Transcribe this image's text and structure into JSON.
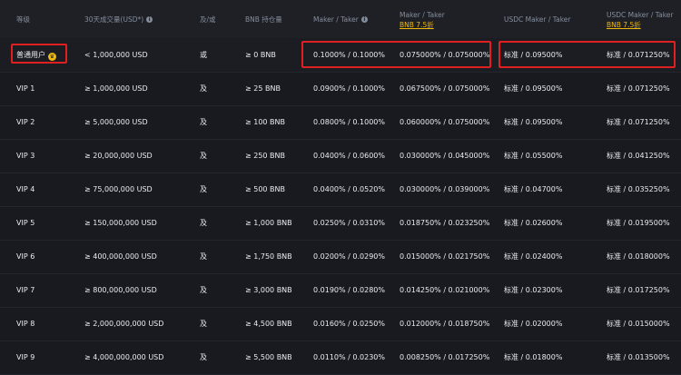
{
  "header": {
    "level": "等级",
    "volume": "30天成交量(USD*)",
    "andor": "及/或",
    "bnb_holding": "BNB 持仓量",
    "maker_taker": "Maker / Taker",
    "maker_taker_bnb": "Maker / Taker",
    "bnb_discount_1": "BNB 7.5折",
    "usdc_maker_taker": "USDC Maker / Taker",
    "usdc_maker_taker_bnb": "USDC Maker / Taker",
    "bnb_discount_2": "BNB 7.5折"
  },
  "icons": {
    "info": "info-icon",
    "crown": "crown-icon"
  },
  "colors": {
    "highlight": "#e02020",
    "accent": "#f0b90b"
  },
  "rows": [
    {
      "level": "普通用户",
      "volume": "< 1,000,000 USD",
      "andor": "或",
      "bnb": "≥ 0 BNB",
      "mt": "0.1000% / 0.1000%",
      "mt_bnb": "0.075000% / 0.075000%",
      "usdc": "标准 / 0.09500%",
      "usdc_bnb": "标准 / 0.071250%"
    },
    {
      "level": "VIP 1",
      "volume": "≥ 1,000,000 USD",
      "andor": "及",
      "bnb": "≥ 25 BNB",
      "mt": "0.0900% / 0.1000%",
      "mt_bnb": "0.067500% / 0.075000%",
      "usdc": "标准 / 0.09500%",
      "usdc_bnb": "标准 / 0.071250%"
    },
    {
      "level": "VIP 2",
      "volume": "≥ 5,000,000 USD",
      "andor": "及",
      "bnb": "≥ 100 BNB",
      "mt": "0.0800% / 0.1000%",
      "mt_bnb": "0.060000% / 0.075000%",
      "usdc": "标准 / 0.09500%",
      "usdc_bnb": "标准 / 0.071250%"
    },
    {
      "level": "VIP 3",
      "volume": "≥ 20,000,000 USD",
      "andor": "及",
      "bnb": "≥ 250 BNB",
      "mt": "0.0400% / 0.0600%",
      "mt_bnb": "0.030000% / 0.045000%",
      "usdc": "标准 / 0.05500%",
      "usdc_bnb": "标准 / 0.041250%"
    },
    {
      "level": "VIP 4",
      "volume": "≥ 75,000,000 USD",
      "andor": "及",
      "bnb": "≥ 500 BNB",
      "mt": "0.0400% / 0.0520%",
      "mt_bnb": "0.030000% / 0.039000%",
      "usdc": "标准 / 0.04700%",
      "usdc_bnb": "标准 / 0.035250%"
    },
    {
      "level": "VIP 5",
      "volume": "≥ 150,000,000 USD",
      "andor": "及",
      "bnb": "≥ 1,000 BNB",
      "mt": "0.0250% / 0.0310%",
      "mt_bnb": "0.018750% / 0.023250%",
      "usdc": "标准 / 0.02600%",
      "usdc_bnb": "标准 / 0.019500%"
    },
    {
      "level": "VIP 6",
      "volume": "≥ 400,000,000 USD",
      "andor": "及",
      "bnb": "≥ 1,750 BNB",
      "mt": "0.0200% / 0.0290%",
      "mt_bnb": "0.015000% / 0.021750%",
      "usdc": "标准 / 0.02400%",
      "usdc_bnb": "标准 / 0.018000%"
    },
    {
      "level": "VIP 7",
      "volume": "≥ 800,000,000 USD",
      "andor": "及",
      "bnb": "≥ 3,000 BNB",
      "mt": "0.0190% / 0.0280%",
      "mt_bnb": "0.014250% / 0.021000%",
      "usdc": "标准 / 0.02300%",
      "usdc_bnb": "标准 / 0.017250%"
    },
    {
      "level": "VIP 8",
      "volume": "≥ 2,000,000,000 USD",
      "andor": "及",
      "bnb": "≥ 4,500 BNB",
      "mt": "0.0160% / 0.0250%",
      "mt_bnb": "0.012000% / 0.018750%",
      "usdc": "标准 / 0.02000%",
      "usdc_bnb": "标准 / 0.015000%"
    },
    {
      "level": "VIP 9",
      "volume": "≥ 4,000,000,000 USD",
      "andor": "及",
      "bnb": "≥ 5,500 BNB",
      "mt": "0.0110% / 0.0230%",
      "mt_bnb": "0.008250% / 0.017250%",
      "usdc": "标准 / 0.01800%",
      "usdc_bnb": "标准 / 0.013500%"
    }
  ]
}
